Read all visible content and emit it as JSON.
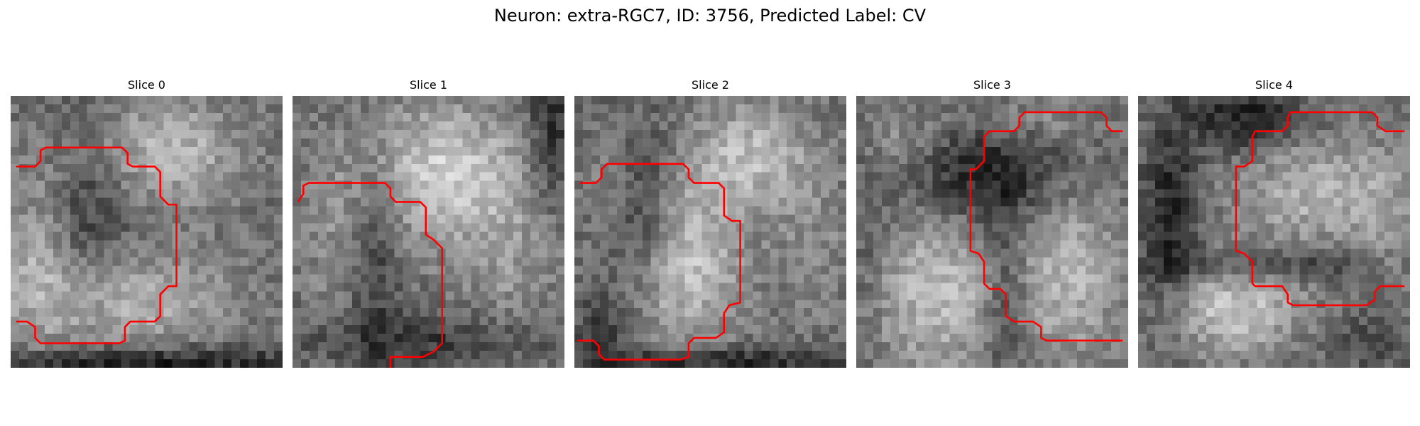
{
  "figure": {
    "title": "Neuron: extra-RGC7, ID: 3756, Predicted Label: CV"
  },
  "contour_color": "#ff0000",
  "panels": [
    {
      "title": "Slice 0",
      "seed": 11,
      "blobs": [
        [
          0.55,
          0.2,
          0.3,
          0.2,
          0.32
        ],
        [
          0.4,
          0.75,
          0.4,
          0.2,
          0.3
        ],
        [
          0.1,
          0.55,
          0.12,
          0.35,
          0.2
        ]
      ],
      "dark": [
        [
          0.3,
          0.4,
          0.18,
          0.4,
          0.2
        ],
        [
          0.5,
          0.98,
          0.6,
          0.06,
          0.35
        ]
      ],
      "contour": [
        [
          0.02,
          0.26
        ],
        [
          0.09,
          0.26
        ],
        [
          0.11,
          0.24
        ],
        [
          0.11,
          0.2
        ],
        [
          0.13,
          0.19
        ],
        [
          0.41,
          0.19
        ],
        [
          0.43,
          0.21
        ],
        [
          0.43,
          0.25
        ],
        [
          0.45,
          0.26
        ],
        [
          0.53,
          0.26
        ],
        [
          0.55,
          0.28
        ],
        [
          0.55,
          0.37
        ],
        [
          0.58,
          0.4
        ],
        [
          0.61,
          0.4
        ],
        [
          0.61,
          0.7
        ],
        [
          0.58,
          0.7
        ],
        [
          0.55,
          0.73
        ],
        [
          0.55,
          0.81
        ],
        [
          0.53,
          0.83
        ],
        [
          0.44,
          0.83
        ],
        [
          0.42,
          0.85
        ],
        [
          0.42,
          0.9
        ],
        [
          0.4,
          0.91
        ],
        [
          0.11,
          0.91
        ],
        [
          0.09,
          0.89
        ],
        [
          0.09,
          0.85
        ],
        [
          0.06,
          0.83
        ],
        [
          0.02,
          0.83
        ]
      ]
    },
    {
      "title": "Slice 1",
      "seed": 23,
      "blobs": [
        [
          0.55,
          0.28,
          0.28,
          0.25,
          0.38
        ],
        [
          0.2,
          0.5,
          0.18,
          0.35,
          0.15
        ],
        [
          0.8,
          0.6,
          0.2,
          0.35,
          0.15
        ]
      ],
      "dark": [
        [
          0.3,
          0.55,
          0.1,
          0.35,
          0.25
        ],
        [
          0.5,
          0.9,
          0.5,
          0.1,
          0.2
        ],
        [
          0.95,
          0.1,
          0.08,
          0.3,
          0.25
        ]
      ],
      "contour": [
        [
          0.02,
          0.39
        ],
        [
          0.04,
          0.36
        ],
        [
          0.04,
          0.33
        ],
        [
          0.06,
          0.32
        ],
        [
          0.34,
          0.32
        ],
        [
          0.36,
          0.34
        ],
        [
          0.36,
          0.37
        ],
        [
          0.38,
          0.39
        ],
        [
          0.47,
          0.39
        ],
        [
          0.49,
          0.41
        ],
        [
          0.49,
          0.51
        ],
        [
          0.52,
          0.53
        ],
        [
          0.55,
          0.56
        ],
        [
          0.55,
          0.91
        ],
        [
          0.52,
          0.94
        ],
        [
          0.48,
          0.96
        ],
        [
          0.36,
          0.96
        ],
        [
          0.36,
          1.0
        ]
      ]
    },
    {
      "title": "Slice 2",
      "seed": 37,
      "blobs": [
        [
          0.65,
          0.22,
          0.22,
          0.2,
          0.3
        ],
        [
          0.4,
          0.62,
          0.22,
          0.32,
          0.35
        ],
        [
          0.13,
          0.3,
          0.1,
          0.15,
          0.12
        ],
        [
          0.88,
          0.55,
          0.14,
          0.3,
          0.12
        ]
      ],
      "dark": [
        [
          0.25,
          0.45,
          0.12,
          0.3,
          0.25
        ],
        [
          0.5,
          0.98,
          0.55,
          0.06,
          0.3
        ],
        [
          0.1,
          0.85,
          0.1,
          0.15,
          0.2
        ]
      ],
      "contour": [
        [
          0.02,
          0.32
        ],
        [
          0.08,
          0.32
        ],
        [
          0.1,
          0.3
        ],
        [
          0.1,
          0.27
        ],
        [
          0.12,
          0.25
        ],
        [
          0.4,
          0.25
        ],
        [
          0.42,
          0.27
        ],
        [
          0.42,
          0.3
        ],
        [
          0.44,
          0.32
        ],
        [
          0.53,
          0.32
        ],
        [
          0.55,
          0.34
        ],
        [
          0.55,
          0.44
        ],
        [
          0.58,
          0.46
        ],
        [
          0.61,
          0.46
        ],
        [
          0.61,
          0.76
        ],
        [
          0.57,
          0.77
        ],
        [
          0.55,
          0.8
        ],
        [
          0.55,
          0.87
        ],
        [
          0.52,
          0.89
        ],
        [
          0.44,
          0.89
        ],
        [
          0.42,
          0.91
        ],
        [
          0.42,
          0.96
        ],
        [
          0.39,
          0.97
        ],
        [
          0.11,
          0.97
        ],
        [
          0.09,
          0.95
        ],
        [
          0.09,
          0.92
        ],
        [
          0.07,
          0.9
        ],
        [
          0.01,
          0.9
        ]
      ]
    },
    {
      "title": "Slice 3",
      "seed": 51,
      "blobs": [
        [
          0.3,
          0.72,
          0.25,
          0.3,
          0.32
        ],
        [
          0.78,
          0.65,
          0.2,
          0.35,
          0.28
        ],
        [
          0.15,
          0.15,
          0.15,
          0.12,
          0.15
        ],
        [
          0.65,
          0.08,
          0.25,
          0.08,
          0.12
        ]
      ],
      "dark": [
        [
          0.5,
          0.3,
          0.3,
          0.18,
          0.3
        ],
        [
          0.55,
          0.75,
          0.08,
          0.3,
          0.25
        ],
        [
          0.05,
          0.55,
          0.06,
          0.35,
          0.1
        ]
      ],
      "contour": [
        [
          0.98,
          0.13
        ],
        [
          0.94,
          0.13
        ],
        [
          0.92,
          0.11
        ],
        [
          0.92,
          0.08
        ],
        [
          0.9,
          0.06
        ],
        [
          0.62,
          0.06
        ],
        [
          0.6,
          0.08
        ],
        [
          0.6,
          0.11
        ],
        [
          0.58,
          0.13
        ],
        [
          0.49,
          0.13
        ],
        [
          0.47,
          0.15
        ],
        [
          0.47,
          0.24
        ],
        [
          0.44,
          0.27
        ],
        [
          0.42,
          0.27
        ],
        [
          0.42,
          0.57
        ],
        [
          0.45,
          0.58
        ],
        [
          0.47,
          0.61
        ],
        [
          0.47,
          0.69
        ],
        [
          0.49,
          0.71
        ],
        [
          0.53,
          0.71
        ],
        [
          0.55,
          0.73
        ],
        [
          0.55,
          0.81
        ],
        [
          0.58,
          0.83
        ],
        [
          0.65,
          0.83
        ],
        [
          0.68,
          0.85
        ],
        [
          0.68,
          0.89
        ],
        [
          0.7,
          0.9
        ],
        [
          0.98,
          0.9
        ]
      ]
    },
    {
      "title": "Slice 4",
      "seed": 73,
      "blobs": [
        [
          0.35,
          0.78,
          0.25,
          0.18,
          0.35
        ],
        [
          0.65,
          0.35,
          0.28,
          0.2,
          0.28
        ],
        [
          0.92,
          0.45,
          0.12,
          0.3,
          0.12
        ]
      ],
      "dark": [
        [
          0.12,
          0.45,
          0.1,
          0.35,
          0.3
        ],
        [
          0.4,
          0.08,
          0.2,
          0.12,
          0.3
        ],
        [
          0.48,
          0.62,
          0.35,
          0.06,
          0.25
        ],
        [
          0.85,
          0.9,
          0.15,
          0.1,
          0.15
        ]
      ],
      "contour": [
        [
          0.98,
          0.13
        ],
        [
          0.91,
          0.13
        ],
        [
          0.88,
          0.11
        ],
        [
          0.88,
          0.08
        ],
        [
          0.86,
          0.06
        ],
        [
          0.56,
          0.06
        ],
        [
          0.55,
          0.08
        ],
        [
          0.55,
          0.11
        ],
        [
          0.53,
          0.13
        ],
        [
          0.43,
          0.13
        ],
        [
          0.42,
          0.15
        ],
        [
          0.42,
          0.24
        ],
        [
          0.39,
          0.26
        ],
        [
          0.36,
          0.26
        ],
        [
          0.36,
          0.57
        ],
        [
          0.39,
          0.58
        ],
        [
          0.42,
          0.61
        ],
        [
          0.42,
          0.69
        ],
        [
          0.43,
          0.7
        ],
        [
          0.53,
          0.7
        ],
        [
          0.55,
          0.73
        ],
        [
          0.55,
          0.76
        ],
        [
          0.57,
          0.77
        ],
        [
          0.84,
          0.77
        ],
        [
          0.87,
          0.75
        ],
        [
          0.87,
          0.72
        ],
        [
          0.89,
          0.7
        ],
        [
          0.98,
          0.7
        ]
      ]
    }
  ]
}
